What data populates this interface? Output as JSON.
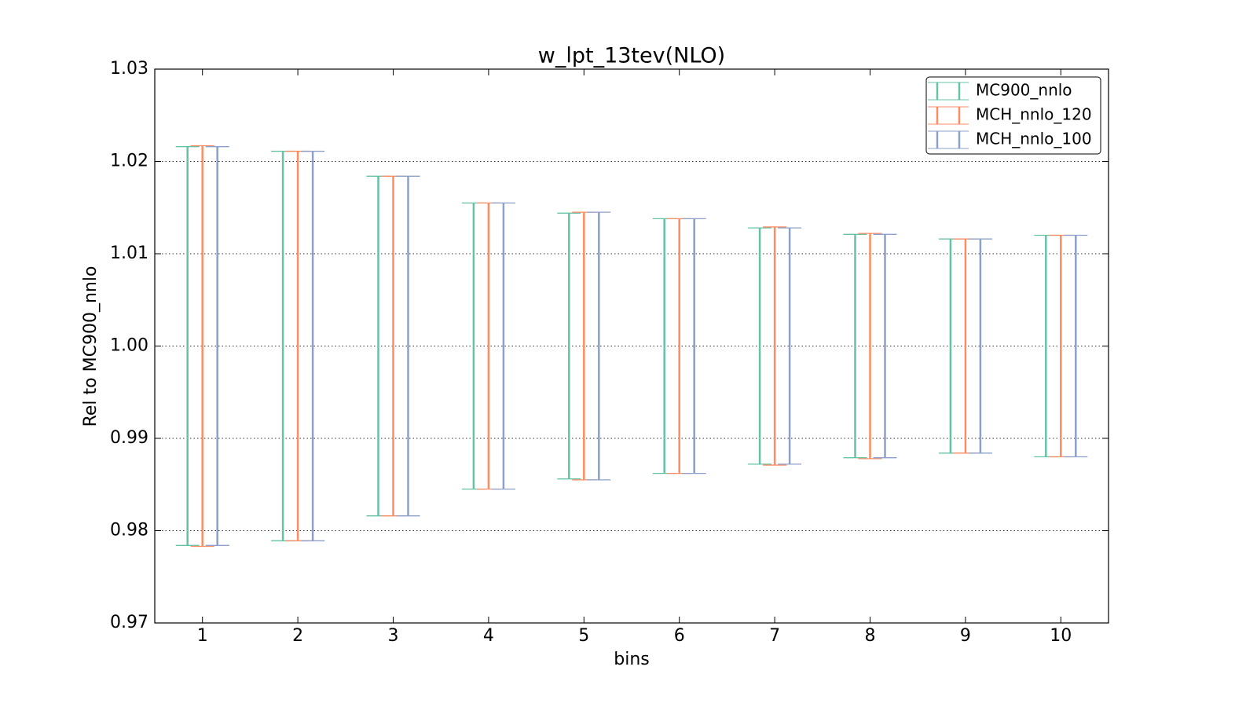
{
  "chart_data": {
    "type": "errorbar",
    "title": "w_lpt_13tev(NLO)",
    "x_label": "bins",
    "y_label": "Rel to MC900_nnlo",
    "x": [
      1,
      2,
      3,
      4,
      5,
      6,
      7,
      8,
      9,
      10
    ],
    "xlim": [
      0.5,
      10.5
    ],
    "xticks": [
      1,
      2,
      3,
      4,
      5,
      6,
      7,
      8,
      9,
      10
    ],
    "ylim": [
      0.97,
      1.03
    ],
    "yticks": [
      {
        "value": 0.97,
        "label": "0.97"
      },
      {
        "value": 0.98,
        "label": "0.98"
      },
      {
        "value": 0.99,
        "label": "0.99"
      },
      {
        "value": 1.0,
        "label": "1.00"
      },
      {
        "value": 1.01,
        "label": "1.01"
      },
      {
        "value": 1.02,
        "label": "1.02"
      },
      {
        "value": 1.03,
        "label": "1.03"
      }
    ],
    "grid": true,
    "legend": "upper right",
    "series": [
      {
        "name": "MC900_nnlo",
        "color": "#66c2a5",
        "values": [
          1,
          1,
          1,
          1,
          1,
          1,
          1,
          1,
          1,
          1
        ],
        "errors": [
          0.0216,
          0.0211,
          0.0184,
          0.0155,
          0.0144,
          0.0138,
          0.0128,
          0.0121,
          0.0116,
          0.012
        ]
      },
      {
        "name": "MCH_nnlo_120",
        "color": "#fc8d62",
        "values": [
          1,
          1,
          1,
          1,
          1,
          1,
          1,
          1,
          1,
          1
        ],
        "errors": [
          0.0217,
          0.0211,
          0.0184,
          0.0155,
          0.0145,
          0.0138,
          0.0129,
          0.0122,
          0.0116,
          0.012
        ]
      },
      {
        "name": "MCH_nnlo_100",
        "color": "#8da0cb",
        "values": [
          1,
          1,
          1,
          1,
          1,
          1,
          1,
          1,
          1,
          1
        ],
        "errors": [
          0.0216,
          0.0211,
          0.0184,
          0.0155,
          0.0145,
          0.0138,
          0.0128,
          0.0121,
          0.0116,
          0.012
        ]
      }
    ]
  }
}
